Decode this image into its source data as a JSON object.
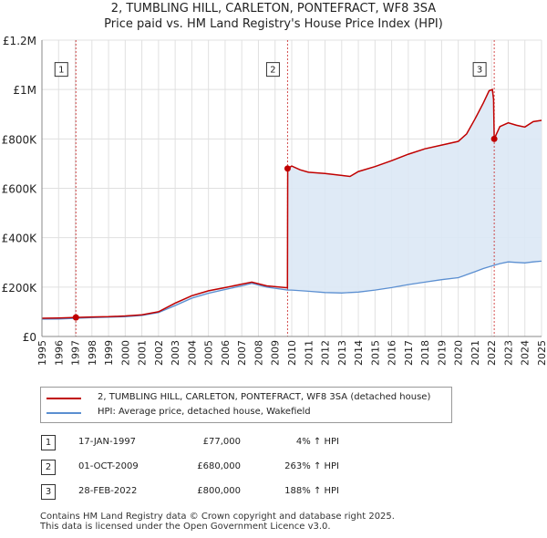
{
  "title_line1": "2, TUMBLING HILL, CARLETON, PONTEFRACT, WF8 3SA",
  "title_line2": "Price paid vs. HM Land Registry's House Price Index (HPI)",
  "colors": {
    "property": "#c00000",
    "hpi": "#5b8fd1",
    "shade": "#dce8f5",
    "grid": "#e0e0e0"
  },
  "chart_data": {
    "type": "line",
    "xlim": [
      1995,
      2025
    ],
    "ylim": [
      0,
      1200000
    ],
    "y_ticks": [
      {
        "value": 0,
        "label": "£0"
      },
      {
        "value": 200000,
        "label": "£200K"
      },
      {
        "value": 400000,
        "label": "£400K"
      },
      {
        "value": 600000,
        "label": "£600K"
      },
      {
        "value": 800000,
        "label": "£800K"
      },
      {
        "value": 1000000,
        "label": "£1M"
      },
      {
        "value": 1200000,
        "label": "£1.2M"
      }
    ],
    "x_ticks": [
      "1995",
      "1996",
      "1997",
      "1998",
      "1999",
      "2000",
      "2001",
      "2002",
      "2003",
      "2004",
      "2005",
      "2006",
      "2007",
      "2008",
      "2009",
      "2010",
      "2011",
      "2012",
      "2013",
      "2014",
      "2015",
      "2016",
      "2017",
      "2018",
      "2019",
      "2020",
      "2021",
      "2022",
      "2023",
      "2024",
      "2025"
    ],
    "series": [
      {
        "name": "2, TUMBLING HILL, CARLETON, PONTEFRACT, WF8 3SA (detached house)",
        "key": "property",
        "points": [
          [
            1995.0,
            74000
          ],
          [
            1996.0,
            75000
          ],
          [
            1997.04,
            77000
          ],
          [
            1998.0,
            79000
          ],
          [
            1999.0,
            80000
          ],
          [
            2000.0,
            83000
          ],
          [
            2001.0,
            88000
          ],
          [
            2002.0,
            100000
          ],
          [
            2003.0,
            135000
          ],
          [
            2004.0,
            165000
          ],
          [
            2005.0,
            185000
          ],
          [
            2006.0,
            198000
          ],
          [
            2007.0,
            212000
          ],
          [
            2007.6,
            220000
          ],
          [
            2008.5,
            205000
          ],
          [
            2009.74,
            197000
          ],
          [
            2009.76,
            680000
          ],
          [
            2010.0,
            690000
          ],
          [
            2010.5,
            675000
          ],
          [
            2011.0,
            665000
          ],
          [
            2012.0,
            660000
          ],
          [
            2013.0,
            652000
          ],
          [
            2013.5,
            648000
          ],
          [
            2014.0,
            668000
          ],
          [
            2015.0,
            688000
          ],
          [
            2016.0,
            712000
          ],
          [
            2017.0,
            738000
          ],
          [
            2018.0,
            760000
          ],
          [
            2019.0,
            775000
          ],
          [
            2020.0,
            790000
          ],
          [
            2020.5,
            820000
          ],
          [
            2021.0,
            880000
          ],
          [
            2021.5,
            945000
          ],
          [
            2021.85,
            995000
          ],
          [
            2022.05,
            1000000
          ],
          [
            2022.12,
            960000
          ],
          [
            2022.16,
            800000
          ],
          [
            2022.5,
            850000
          ],
          [
            2023.0,
            865000
          ],
          [
            2023.5,
            855000
          ],
          [
            2024.0,
            848000
          ],
          [
            2024.5,
            870000
          ],
          [
            2025.0,
            875000
          ]
        ]
      },
      {
        "name": "HPI: Average price, detached house, Wakefield",
        "key": "hpi",
        "points": [
          [
            1995.0,
            70000
          ],
          [
            1996.0,
            71000
          ],
          [
            1997.0,
            73500
          ],
          [
            1998.0,
            76000
          ],
          [
            1999.0,
            78000
          ],
          [
            2000.0,
            80000
          ],
          [
            2001.0,
            85000
          ],
          [
            2002.0,
            97000
          ],
          [
            2003.0,
            125000
          ],
          [
            2004.0,
            155000
          ],
          [
            2005.0,
            175000
          ],
          [
            2006.0,
            190000
          ],
          [
            2007.0,
            205000
          ],
          [
            2007.6,
            215000
          ],
          [
            2008.5,
            200000
          ],
          [
            2009.75,
            188000
          ],
          [
            2010.0,
            188000
          ],
          [
            2011.0,
            183000
          ],
          [
            2012.0,
            178000
          ],
          [
            2013.0,
            176000
          ],
          [
            2014.0,
            180000
          ],
          [
            2015.0,
            188000
          ],
          [
            2016.0,
            198000
          ],
          [
            2017.0,
            210000
          ],
          [
            2018.0,
            220000
          ],
          [
            2019.0,
            230000
          ],
          [
            2020.0,
            238000
          ],
          [
            2020.5,
            250000
          ],
          [
            2021.0,
            262000
          ],
          [
            2021.5,
            275000
          ],
          [
            2022.0,
            285000
          ],
          [
            2022.5,
            295000
          ],
          [
            2023.0,
            302000
          ],
          [
            2023.5,
            300000
          ],
          [
            2024.0,
            298000
          ],
          [
            2024.5,
            302000
          ],
          [
            2025.0,
            305000
          ]
        ]
      }
    ],
    "sales": [
      {
        "num": "1",
        "x": 1997.04,
        "price": 77000
      },
      {
        "num": "2",
        "x": 2009.75,
        "price": 680000
      },
      {
        "num": "3",
        "x": 2022.16,
        "price": 800000
      }
    ],
    "marker_box_y": 1050000,
    "shade_from": 2025.0
  },
  "legend": {
    "property_label": "2, TUMBLING HILL, CARLETON, PONTEFRACT, WF8 3SA (detached house)",
    "hpi_label": "HPI: Average price, detached house, Wakefield"
  },
  "sales_table": [
    {
      "num": "1",
      "date": "17-JAN-1997",
      "price": "£77,000",
      "hpi": "4% ↑ HPI"
    },
    {
      "num": "2",
      "date": "01-OCT-2009",
      "price": "£680,000",
      "hpi": "263% ↑ HPI"
    },
    {
      "num": "3",
      "date": "28-FEB-2022",
      "price": "£800,000",
      "hpi": "188% ↑ HPI"
    }
  ],
  "footer_line1": "Contains HM Land Registry data © Crown copyright and database right 2025.",
  "footer_line2": "This data is licensed under the Open Government Licence v3.0."
}
